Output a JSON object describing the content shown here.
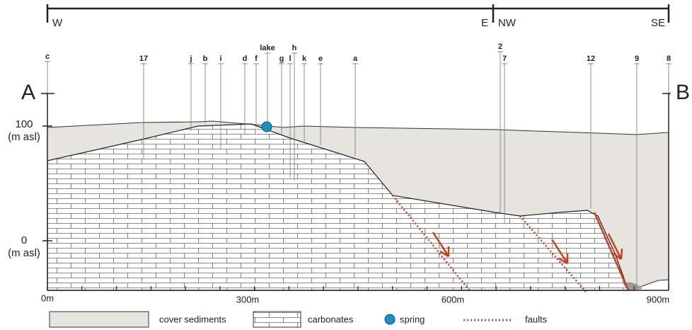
{
  "header": {
    "directions": [
      "W",
      "E",
      "NW",
      "SE"
    ]
  },
  "section": {
    "start": "A",
    "end": "B"
  },
  "elevation_labels": [
    {
      "value": "100",
      "unit": "(m asl)"
    },
    {
      "value": "0",
      "unit": "(m asl)"
    }
  ],
  "distance_labels": [
    "0m",
    "300m",
    "600m",
    "900m"
  ],
  "wells": [
    "c",
    "17",
    "j",
    "b",
    "i",
    "d",
    "f",
    "lake",
    "g",
    "l",
    "h",
    "k",
    "e",
    "a",
    "2",
    "7",
    "12",
    "9",
    "8"
  ],
  "legend": [
    "cover sediments",
    "carbonates",
    "spring",
    "faults"
  ]
}
